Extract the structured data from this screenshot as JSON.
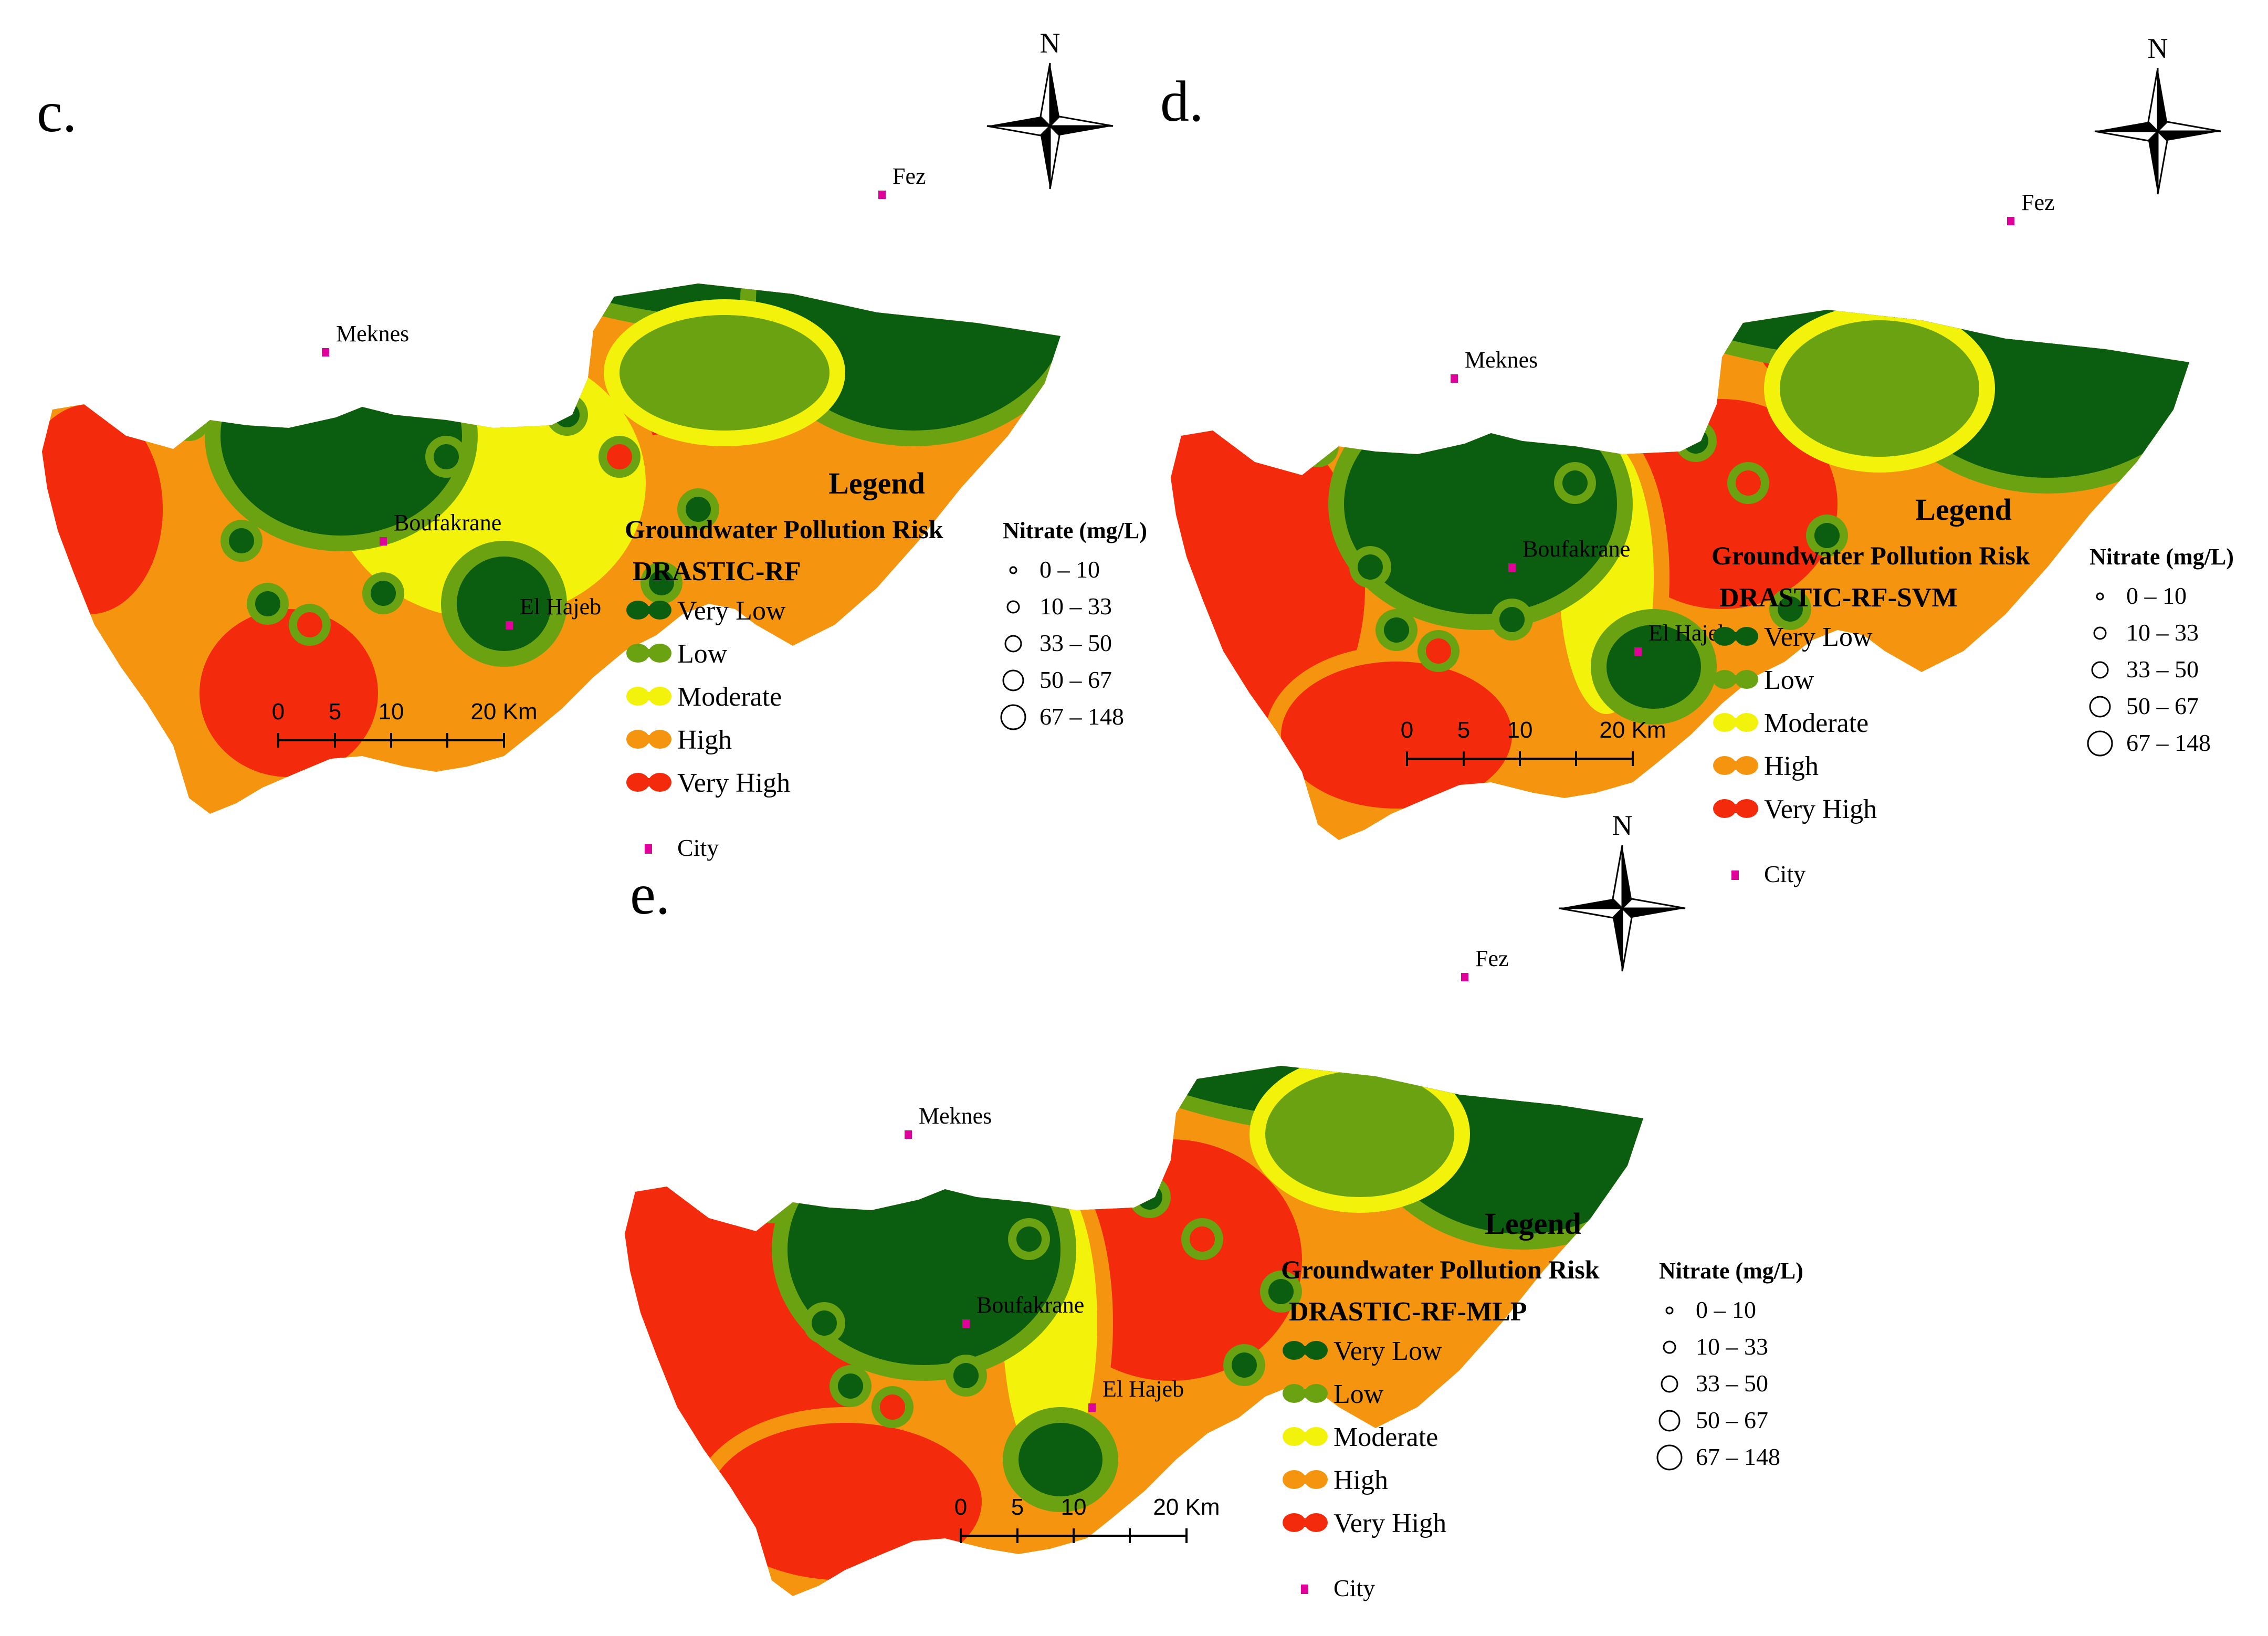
{
  "colors": {
    "very_low": "#0b5d0f",
    "low": "#6aa211",
    "moderate": "#f2f20a",
    "high": "#f5950f",
    "very_high": "#f42a0c",
    "city": "#e0009a"
  },
  "north_label": "N",
  "scale": {
    "ticks": [
      "0",
      "5",
      "10",
      "20 Km"
    ]
  },
  "panels": [
    {
      "letter": "c.",
      "legend_title": "Legend",
      "legend_subtitle": "Groundwater Pollution Risk",
      "model": "DRASTIC-RF",
      "classes": [
        "Very Low",
        "Low",
        "Moderate",
        "High",
        "Very High"
      ],
      "city_label": "City",
      "nitrate_title": "Nitrate (mg/L)",
      "nitrate_classes": [
        "0 – 10",
        "10 – 33",
        "33 – 50",
        "50 – 67",
        "67 – 148"
      ],
      "cities": [
        "Meknes",
        "Boufakrane",
        "El Hajeb",
        "Fez"
      ]
    },
    {
      "letter": "d.",
      "legend_title": "Legend",
      "legend_subtitle": "Groundwater Pollution Risk",
      "model": "DRASTIC-RF-SVM",
      "classes": [
        "Very Low",
        "Low",
        "Moderate",
        "High",
        "Very High"
      ],
      "city_label": "City",
      "nitrate_title": "Nitrate (mg/L)",
      "nitrate_classes": [
        "0 – 10",
        "10 – 33",
        "33 – 50",
        "50 – 67",
        "67 – 148"
      ],
      "cities": [
        "Meknes",
        "Boufakrane",
        "El Hajeb",
        "Fez"
      ]
    },
    {
      "letter": "e.",
      "legend_title": "Legend",
      "legend_subtitle": "Groundwater Pollution Risk",
      "model": "DRASTIC-RF-MLP",
      "classes": [
        "Very Low",
        "Low",
        "Moderate",
        "High",
        "Very High"
      ],
      "city_label": "City",
      "nitrate_title": "Nitrate (mg/L)",
      "nitrate_classes": [
        "0 – 10",
        "10 – 33",
        "33 – 50",
        "50 – 67",
        "67 – 148"
      ],
      "cities": [
        "Meknes",
        "Boufakrane",
        "El Hajeb",
        "Fez"
      ]
    }
  ]
}
